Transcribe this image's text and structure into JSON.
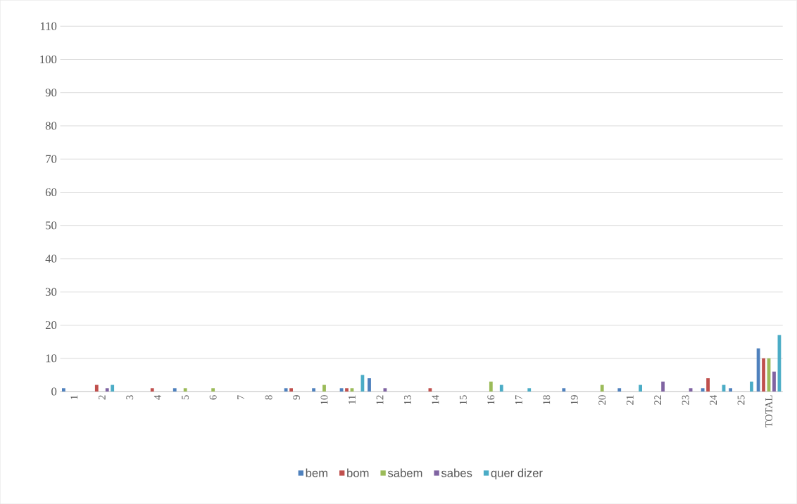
{
  "chart_data": {
    "type": "bar",
    "categories": [
      "1",
      "2",
      "3",
      "4",
      "5",
      "6",
      "7",
      "8",
      "9",
      "10",
      "11",
      "12",
      "13",
      "14",
      "15",
      "16",
      "17",
      "18",
      "19",
      "20",
      "21",
      "22",
      "23",
      "24",
      "25",
      "TOTAL"
    ],
    "series": [
      {
        "name": "bem",
        "color": "#4f81bd",
        "values": [
          1,
          0,
          0,
          0,
          1,
          0,
          0,
          0,
          1,
          1,
          1,
          4,
          0,
          0,
          0,
          0,
          0,
          0,
          1,
          0,
          1,
          0,
          0,
          1,
          1,
          13
        ]
      },
      {
        "name": "bom",
        "color": "#c0504d",
        "values": [
          0,
          2,
          0,
          1,
          0,
          0,
          0,
          0,
          1,
          0,
          1,
          0,
          0,
          1,
          0,
          0,
          0,
          0,
          0,
          0,
          0,
          0,
          0,
          4,
          0,
          10
        ]
      },
      {
        "name": "sabem",
        "color": "#9bbb59",
        "values": [
          0,
          0,
          0,
          0,
          1,
          1,
          0,
          0,
          0,
          2,
          1,
          0,
          0,
          0,
          0,
          3,
          0,
          0,
          0,
          2,
          0,
          0,
          0,
          0,
          0,
          10
        ]
      },
      {
        "name": "sabes",
        "color": "#8064a2",
        "values": [
          0,
          1,
          0,
          0,
          0,
          0,
          0,
          0,
          0,
          0,
          0,
          1,
          0,
          0,
          0,
          0,
          0,
          0,
          0,
          0,
          0,
          3,
          1,
          0,
          0,
          6
        ]
      },
      {
        "name": "quer dizer",
        "color": "#4bacc6",
        "values": [
          0,
          2,
          0,
          0,
          0,
          0,
          0,
          0,
          0,
          0,
          5,
          0,
          0,
          0,
          0,
          2,
          1,
          0,
          0,
          0,
          2,
          0,
          0,
          2,
          3,
          17
        ]
      }
    ],
    "ylim": [
      0,
      110
    ],
    "yticks": [
      0,
      10,
      20,
      30,
      40,
      50,
      60,
      70,
      80,
      90,
      100,
      110
    ],
    "grid": "y",
    "legend": "bottom"
  }
}
